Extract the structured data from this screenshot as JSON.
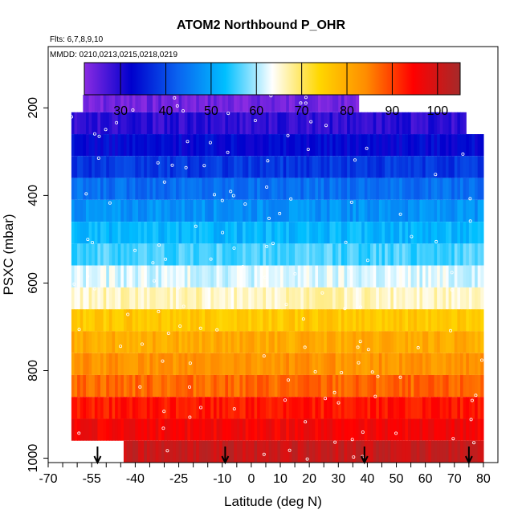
{
  "header": {
    "title": "ATOM2 Northbound P_OHR",
    "flights_note": "Flts: 6,7,8,9,10",
    "dates_note": "MMDD: 0210,0213,0215,0218,0219"
  },
  "chart_data": {
    "type": "heatmap",
    "title": "ATOM2 Northbound P_OHR",
    "xlabel": "Latitude (deg N)",
    "ylabel": "PSXC (mbar)",
    "xlim": [
      -70,
      85
    ],
    "ylim": [
      1010,
      60
    ],
    "y_reversed": true,
    "grid": false,
    "x_tick_values": [
      -70,
      -55,
      -40,
      -25,
      -10,
      0,
      10,
      20,
      30,
      40,
      50,
      60,
      70,
      80
    ],
    "x_tick_labels": [
      "-70",
      "-55",
      "-40",
      "-25",
      "-10",
      "0",
      "10",
      "20",
      "30",
      "40",
      "50",
      "60",
      "70",
      "80"
    ],
    "x_minor_ticks": [
      -65,
      -60,
      -50,
      -45,
      -35,
      -30,
      -20,
      -15,
      -5,
      5,
      15,
      25,
      35,
      45,
      55,
      65,
      75
    ],
    "y_tick_values": [
      200,
      400,
      600,
      800,
      1000
    ],
    "y_tick_labels": [
      "200",
      "400",
      "600",
      "800",
      "1000"
    ],
    "colorbar": {
      "range": [
        22,
        105
      ],
      "tick_values": [
        30,
        40,
        50,
        60,
        70,
        80,
        90,
        100
      ],
      "tick_labels": [
        "30",
        "40",
        "50",
        "60",
        "70",
        "80",
        "90",
        "100"
      ],
      "colors": [
        "#8a2be2",
        "#0000cd",
        "#0a64f0",
        "#00bfff",
        "#ffffff",
        "#ffd700",
        "#ff8c00",
        "#ff0000",
        "#a52a2a"
      ],
      "placement": "top inside plot"
    },
    "pressure_bins": [
      {
        "p_top": 170,
        "p_bot": 210,
        "lat_min": -58,
        "lat_max": 37,
        "value": 24
      },
      {
        "p_top": 210,
        "p_bot": 260,
        "lat_min": -62,
        "lat_max": 74,
        "value": 29
      },
      {
        "p_top": 260,
        "p_bot": 310,
        "lat_min": -62,
        "lat_max": 80,
        "value": 33
      },
      {
        "p_top": 310,
        "p_bot": 360,
        "lat_min": -62,
        "lat_max": 80,
        "value": 38
      },
      {
        "p_top": 360,
        "p_bot": 410,
        "lat_min": -62,
        "lat_max": 80,
        "value": 44
      },
      {
        "p_top": 410,
        "p_bot": 460,
        "lat_min": -62,
        "lat_max": 80,
        "value": 48
      },
      {
        "p_top": 460,
        "p_bot": 510,
        "lat_min": -62,
        "lat_max": 80,
        "value": 52
      },
      {
        "p_top": 510,
        "p_bot": 560,
        "lat_min": -62,
        "lat_max": 80,
        "value": 56
      },
      {
        "p_top": 560,
        "p_bot": 610,
        "lat_min": -62,
        "lat_max": 80,
        "value": 62
      },
      {
        "p_top": 610,
        "p_bot": 660,
        "lat_min": -62,
        "lat_max": 80,
        "value": 66
      },
      {
        "p_top": 660,
        "p_bot": 710,
        "lat_min": -62,
        "lat_max": 80,
        "value": 76
      },
      {
        "p_top": 710,
        "p_bot": 760,
        "lat_min": -62,
        "lat_max": 80,
        "value": 80
      },
      {
        "p_top": 760,
        "p_bot": 810,
        "lat_min": -62,
        "lat_max": 80,
        "value": 83
      },
      {
        "p_top": 810,
        "p_bot": 860,
        "lat_min": -62,
        "lat_max": 80,
        "value": 87
      },
      {
        "p_top": 860,
        "p_bot": 910,
        "lat_min": -62,
        "lat_max": 80,
        "value": 93
      },
      {
        "p_top": 910,
        "p_bot": 960,
        "lat_min": -62,
        "lat_max": 80,
        "value": 96
      },
      {
        "p_top": 960,
        "p_bot": 1010,
        "lat_min": -44,
        "lat_max": 80,
        "value": 101
      }
    ],
    "profile_markers_lat": [
      -53,
      -9,
      39,
      75
    ]
  }
}
